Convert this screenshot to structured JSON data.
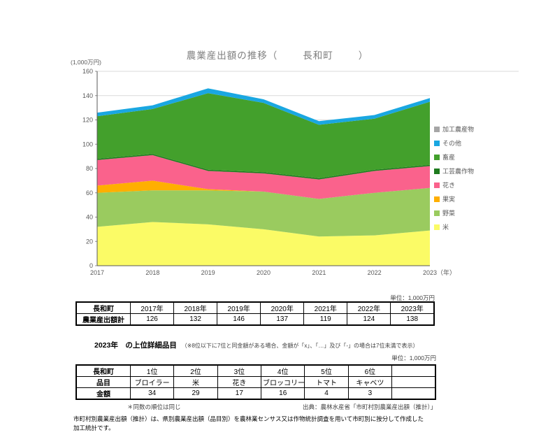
{
  "page": {
    "title_prefix": "農業産出額の推移（",
    "town": "長和町",
    "title_suffix": "）",
    "y_unit": "(1,000万円)"
  },
  "chart_data": {
    "type": "area",
    "stacked": true,
    "title": "農業産出額の推移（長和町）",
    "x_labels": [
      "2017",
      "2018",
      "2019",
      "2020",
      "2021",
      "2022",
      "2023"
    ],
    "x_axis_suffix": "（年）",
    "ylabel": "(1,000万円)",
    "ylim": [
      0,
      160
    ],
    "ytick_step": 20,
    "grid": true,
    "legend_position": "right",
    "series": [
      {
        "name": "米",
        "color": "#FBFB66",
        "values": [
          32,
          36,
          34,
          30,
          24,
          25,
          29
        ]
      },
      {
        "name": "野菜",
        "color": "#9ACB5F",
        "values": [
          28,
          26,
          28,
          31,
          31,
          35,
          35
        ]
      },
      {
        "name": "果実",
        "color": "#FFAF00",
        "values": [
          6,
          8,
          1,
          0,
          0,
          0,
          0
        ]
      },
      {
        "name": "花き",
        "color": "#FA628C",
        "values": [
          21,
          21,
          15,
          15,
          16,
          18,
          18
        ]
      },
      {
        "name": "工芸農作物",
        "color": "#1E7B1E",
        "values": [
          1,
          1,
          1,
          1,
          1,
          1,
          1
        ]
      },
      {
        "name": "畜産",
        "color": "#43A02C",
        "values": [
          35,
          37,
          63,
          57,
          44,
          42,
          52
        ]
      },
      {
        "name": "その他",
        "color": "#1AA7E1",
        "values": [
          3,
          3,
          4,
          3,
          3,
          3,
          3
        ]
      },
      {
        "name": "加工農産物",
        "color": "#A6A6A6",
        "values": [
          0,
          0,
          0,
          0,
          0,
          0,
          0
        ]
      }
    ],
    "totals": [
      126,
      132,
      146,
      137,
      119,
      124,
      138
    ]
  },
  "table1": {
    "unit": "単位：1,000万円",
    "corner": "長和町",
    "columns": [
      "2017年",
      "2018年",
      "2019年",
      "2020年",
      "2021年",
      "2022年",
      "2023年"
    ],
    "row_label": "農業産出額計",
    "values": [
      "126",
      "132",
      "146",
      "137",
      "119",
      "124",
      "138"
    ]
  },
  "section2": {
    "title": "2023年　の上位詳細品目",
    "note": "（※8位以下に7位と同金額がある場合、金額が「x」、「…」及び「-」の場合は7位未満で表示）",
    "unit": "単位：1,000万円"
  },
  "table2": {
    "corner": "長和町",
    "columns": [
      "1位",
      "2位",
      "3位",
      "4位",
      "5位",
      "6位",
      ""
    ],
    "rows": [
      {
        "label": "品目",
        "values": [
          "ブロイラー",
          "米",
          "花き",
          "ブロッコリー",
          "トマト",
          "キャベツ",
          ""
        ]
      },
      {
        "label": "金額",
        "values": [
          "34",
          "29",
          "17",
          "16",
          "4",
          "3",
          ""
        ]
      }
    ],
    "tie_note": "＊同数の順位は同じ",
    "source": "出典：農林水産省「市町村別農業産出額（推計）」"
  },
  "footer": {
    "line1": "市町村別農業産出額（推計）は、県別農業産出額（品目別）を農林業センサス又は作物統計調査を用いて市町別に按分して作成した",
    "line2": "加工統計です。"
  }
}
